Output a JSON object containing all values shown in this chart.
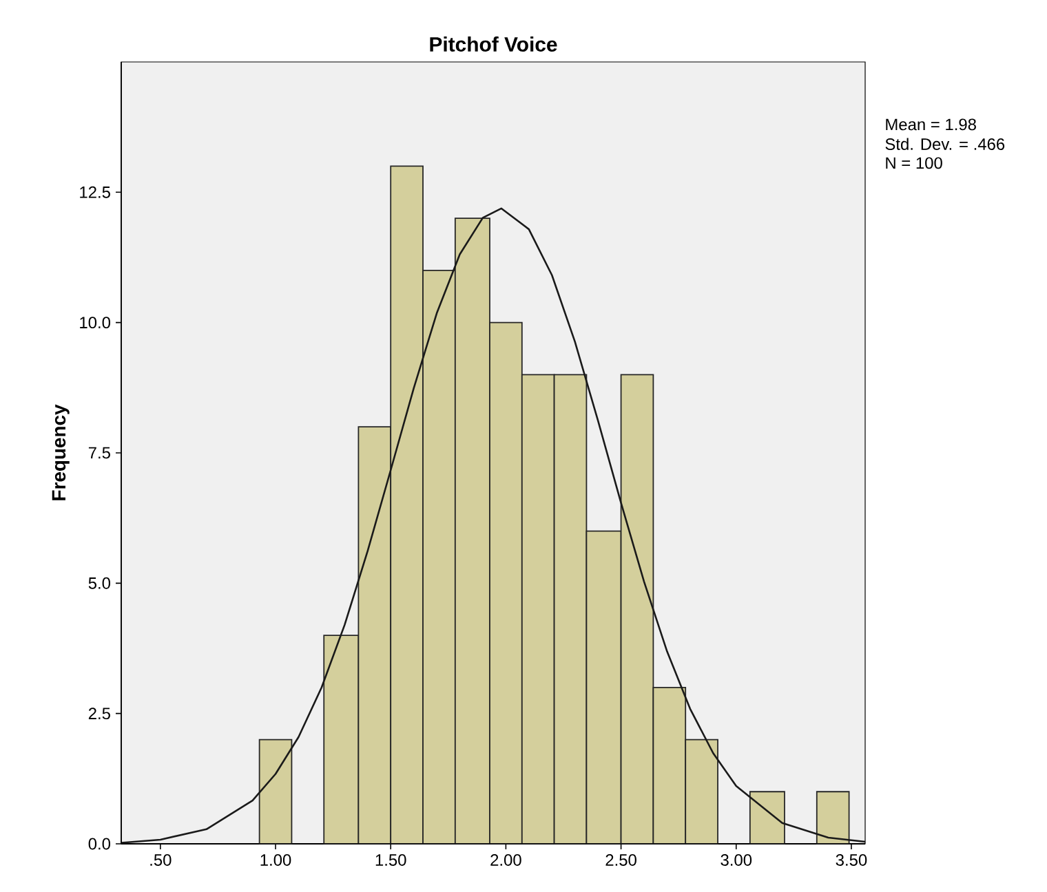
{
  "chart_data": {
    "type": "histogram",
    "title": "Pitchof Voice",
    "ylabel": "Frequency",
    "annotations": [
      "Mean = 1.98",
      "Std. Dev. = .466",
      "N = 100"
    ],
    "series": [
      {
        "type": "histogram",
        "color": "#d4cf9c",
        "bins": [
          0.93,
          1.07,
          1.21,
          1.36,
          1.5,
          1.64,
          1.78,
          1.93,
          2.07,
          2.21,
          2.35,
          2.5,
          2.64,
          2.78,
          2.92,
          3.06,
          3.21,
          3.35,
          3.49
        ],
        "values": [
          2,
          0,
          4,
          8,
          13,
          11,
          12,
          10,
          9,
          9,
          6,
          9,
          3,
          2,
          0,
          1,
          0,
          1
        ]
      },
      {
        "type": "line",
        "color": "#1a1a1a",
        "x": [
          0.33,
          0.5,
          0.7,
          0.9,
          1.0,
          1.1,
          1.2,
          1.3,
          1.4,
          1.5,
          1.6,
          1.7,
          1.8,
          1.9,
          1.98,
          2.1,
          2.2,
          2.3,
          2.4,
          2.5,
          2.6,
          2.7,
          2.8,
          2.9,
          3.0,
          3.2,
          3.4,
          3.56
        ],
        "values": [
          0.02,
          0.08,
          0.28,
          0.83,
          1.34,
          2.05,
          3.0,
          4.2,
          5.62,
          7.17,
          8.74,
          10.18,
          11.31,
          12.01,
          12.19,
          11.79,
          10.91,
          9.63,
          8.12,
          6.54,
          5.03,
          3.69,
          2.59,
          1.74,
          1.11,
          0.4,
          0.12,
          0.04
        ]
      }
    ],
    "xlim": [
      0.33,
      3.56
    ],
    "ylim": [
      0,
      15
    ],
    "xticks": [
      {
        "value": 0.5,
        "label": ".50"
      },
      {
        "value": 1.0,
        "label": "1.00"
      },
      {
        "value": 1.5,
        "label": "1.50"
      },
      {
        "value": 2.0,
        "label": "2.00"
      },
      {
        "value": 2.5,
        "label": "2.50"
      },
      {
        "value": 3.0,
        "label": "3.00"
      },
      {
        "value": 3.5,
        "label": "3.50"
      }
    ],
    "yticks": [
      {
        "value": 0,
        "label": "0.0"
      },
      {
        "value": 2.5,
        "label": "2.5"
      },
      {
        "value": 5,
        "label": "5.0"
      },
      {
        "value": 7.5,
        "label": "7.5"
      },
      {
        "value": 10,
        "label": "10.0"
      },
      {
        "value": 12.5,
        "label": "12.5"
      }
    ],
    "grid": false
  }
}
